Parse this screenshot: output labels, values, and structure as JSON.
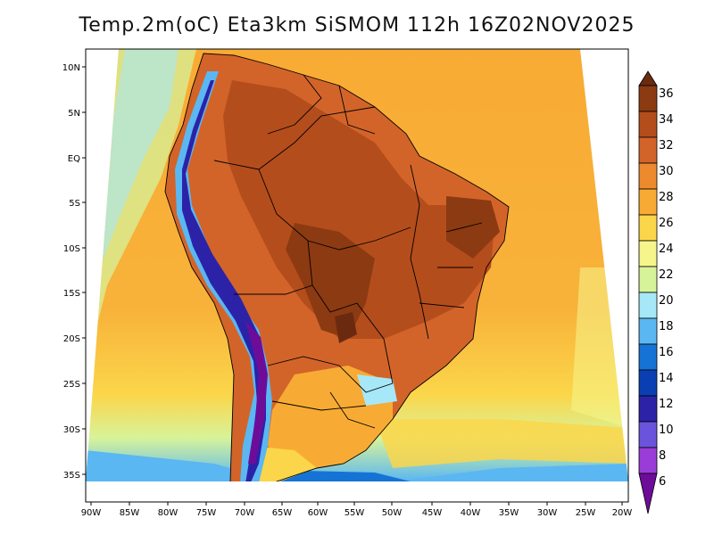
{
  "title": "Temp.2m(oC) Eta3km SiSMOM 112h 16Z02NOV2025",
  "latitude_labels": [
    "10N",
    "5N",
    "EQ",
    "5S",
    "10S",
    "15S",
    "20S",
    "25S",
    "30S",
    "35S"
  ],
  "longitude_labels": [
    "90W",
    "85W",
    "80W",
    "75W",
    "70W",
    "65W",
    "60W",
    "55W",
    "50W",
    "45W",
    "40W",
    "35W",
    "30W",
    "25W",
    "20W"
  ],
  "colorbar": {
    "labels": [
      "36",
      "34",
      "32",
      "30",
      "28",
      "26",
      "24",
      "22",
      "20",
      "18",
      "16",
      "14",
      "12",
      "10",
      "8",
      "6"
    ],
    "colors": [
      "#6b2a10",
      "#8c3a12",
      "#b44d1c",
      "#d2642a",
      "#ee8a2e",
      "#f8ab34",
      "#fbd64a",
      "#f6f58c",
      "#d7f39a",
      "#a6e8f8",
      "#5ab7f2",
      "#1673d6",
      "#0a3fb4",
      "#2c22a8",
      "#6a54dc",
      "#9a3cd8",
      "#6e0c9a"
    ]
  }
}
